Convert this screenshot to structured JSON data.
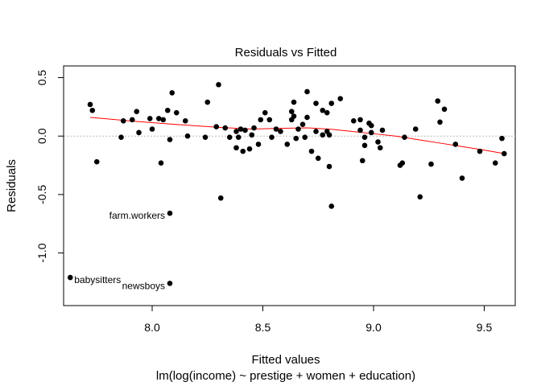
{
  "chart_data": {
    "type": "scatter",
    "title": "Residuals vs Fitted",
    "xlabel": "Fitted values",
    "subtitle": "lm(log(income) ~ prestige + women + education)",
    "ylabel": "Residuals",
    "xlim": [
      7.6,
      9.64
    ],
    "ylim": [
      -1.45,
      0.6
    ],
    "x_ticks": [
      8.0,
      8.5,
      9.0,
      9.5
    ],
    "x_tick_labels": [
      "8.0",
      "8.5",
      "9.0",
      "9.5"
    ],
    "y_ticks": [
      -1.0,
      -0.5,
      0.0,
      0.5
    ],
    "y_tick_labels": [
      "-1.0",
      "-0.5",
      "0.0",
      "0.5"
    ],
    "reference_line": 0,
    "grid": false,
    "points": [
      {
        "x": 7.63,
        "y": -1.21,
        "label": "babysitters"
      },
      {
        "x": 8.08,
        "y": -1.26,
        "label": "newsboys"
      },
      {
        "x": 8.08,
        "y": -0.66,
        "label": "farm.workers"
      },
      {
        "x": 7.72,
        "y": 0.27
      },
      {
        "x": 7.73,
        "y": 0.22
      },
      {
        "x": 7.75,
        "y": -0.22
      },
      {
        "x": 7.86,
        "y": -0.01
      },
      {
        "x": 7.87,
        "y": 0.13
      },
      {
        "x": 7.91,
        "y": 0.14
      },
      {
        "x": 7.93,
        "y": 0.21
      },
      {
        "x": 7.94,
        "y": 0.03
      },
      {
        "x": 7.99,
        "y": 0.15
      },
      {
        "x": 8.0,
        "y": 0.06
      },
      {
        "x": 8.03,
        "y": 0.15
      },
      {
        "x": 8.04,
        "y": -0.23
      },
      {
        "x": 8.05,
        "y": 0.14
      },
      {
        "x": 8.07,
        "y": 0.22
      },
      {
        "x": 8.08,
        "y": -0.03
      },
      {
        "x": 8.09,
        "y": 0.37
      },
      {
        "x": 8.11,
        "y": 0.2
      },
      {
        "x": 8.15,
        "y": 0.13
      },
      {
        "x": 8.16,
        "y": 0.0
      },
      {
        "x": 8.24,
        "y": -0.01
      },
      {
        "x": 8.25,
        "y": 0.29
      },
      {
        "x": 8.29,
        "y": 0.08
      },
      {
        "x": 8.3,
        "y": 0.44
      },
      {
        "x": 8.31,
        "y": -0.53
      },
      {
        "x": 8.33,
        "y": 0.07
      },
      {
        "x": 8.35,
        "y": -0.01
      },
      {
        "x": 8.38,
        "y": -0.1
      },
      {
        "x": 8.38,
        "y": 0.04
      },
      {
        "x": 8.39,
        "y": -0.01
      },
      {
        "x": 8.4,
        "y": 0.06
      },
      {
        "x": 8.41,
        "y": -0.13
      },
      {
        "x": 8.42,
        "y": 0.05
      },
      {
        "x": 8.44,
        "y": -0.11
      },
      {
        "x": 8.45,
        "y": 0.01
      },
      {
        "x": 8.46,
        "y": 0.07
      },
      {
        "x": 8.48,
        "y": -0.07
      },
      {
        "x": 8.49,
        "y": 0.14
      },
      {
        "x": 8.51,
        "y": 0.2
      },
      {
        "x": 8.53,
        "y": 0.14
      },
      {
        "x": 8.54,
        "y": -0.01
      },
      {
        "x": 8.56,
        "y": 0.06
      },
      {
        "x": 8.58,
        "y": 0.04
      },
      {
        "x": 8.61,
        "y": -0.07
      },
      {
        "x": 8.63,
        "y": 0.14
      },
      {
        "x": 8.63,
        "y": 0.21
      },
      {
        "x": 8.64,
        "y": 0.29
      },
      {
        "x": 8.64,
        "y": 0.17
      },
      {
        "x": 8.65,
        "y": -0.02
      },
      {
        "x": 8.66,
        "y": 0.06
      },
      {
        "x": 8.68,
        "y": 0.1
      },
      {
        "x": 8.69,
        "y": -0.01
      },
      {
        "x": 8.7,
        "y": 0.16
      },
      {
        "x": 8.7,
        "y": 0.38
      },
      {
        "x": 8.72,
        "y": -0.13
      },
      {
        "x": 8.74,
        "y": 0.04
      },
      {
        "x": 8.74,
        "y": 0.28
      },
      {
        "x": 8.75,
        "y": -0.19
      },
      {
        "x": 8.77,
        "y": 0.22
      },
      {
        "x": 8.77,
        "y": 0.01
      },
      {
        "x": 8.79,
        "y": 0.2
      },
      {
        "x": 8.79,
        "y": 0.04
      },
      {
        "x": 8.8,
        "y": 0.01
      },
      {
        "x": 8.8,
        "y": -0.26
      },
      {
        "x": 8.81,
        "y": 0.28
      },
      {
        "x": 8.81,
        "y": -0.6
      },
      {
        "x": 8.85,
        "y": 0.32
      },
      {
        "x": 8.91,
        "y": 0.13
      },
      {
        "x": 8.94,
        "y": 0.05
      },
      {
        "x": 8.94,
        "y": 0.14
      },
      {
        "x": 8.95,
        "y": -0.21
      },
      {
        "x": 8.96,
        "y": -0.01
      },
      {
        "x": 8.96,
        "y": -0.08
      },
      {
        "x": 8.98,
        "y": 0.11
      },
      {
        "x": 8.99,
        "y": 0.09
      },
      {
        "x": 8.99,
        "y": 0.03
      },
      {
        "x": 9.02,
        "y": -0.05
      },
      {
        "x": 9.03,
        "y": -0.1
      },
      {
        "x": 9.04,
        "y": 0.05
      },
      {
        "x": 9.12,
        "y": -0.25
      },
      {
        "x": 9.13,
        "y": -0.23
      },
      {
        "x": 9.14,
        "y": -0.01
      },
      {
        "x": 9.19,
        "y": 0.06
      },
      {
        "x": 9.21,
        "y": -0.52
      },
      {
        "x": 9.26,
        "y": -0.24
      },
      {
        "x": 9.29,
        "y": 0.3
      },
      {
        "x": 9.3,
        "y": 0.12
      },
      {
        "x": 9.32,
        "y": 0.23
      },
      {
        "x": 9.37,
        "y": -0.07
      },
      {
        "x": 9.4,
        "y": -0.36
      },
      {
        "x": 9.48,
        "y": -0.13
      },
      {
        "x": 9.55,
        "y": -0.23
      },
      {
        "x": 9.58,
        "y": -0.02
      },
      {
        "x": 9.59,
        "y": -0.15
      }
    ],
    "smooth_line": {
      "color": "#ff0000",
      "x": [
        7.72,
        7.9,
        8.1,
        8.3,
        8.45,
        8.55,
        8.7,
        8.8,
        8.9,
        9.0,
        9.1,
        9.2,
        9.3,
        9.4,
        9.5,
        9.59
      ],
      "y": [
        0.16,
        0.13,
        0.1,
        0.075,
        0.06,
        0.065,
        0.07,
        0.06,
        0.04,
        0.02,
        0.0,
        -0.03,
        -0.06,
        -0.09,
        -0.12,
        -0.15
      ]
    },
    "reference_color": "#bbbbbb",
    "point_color": "#000000"
  }
}
